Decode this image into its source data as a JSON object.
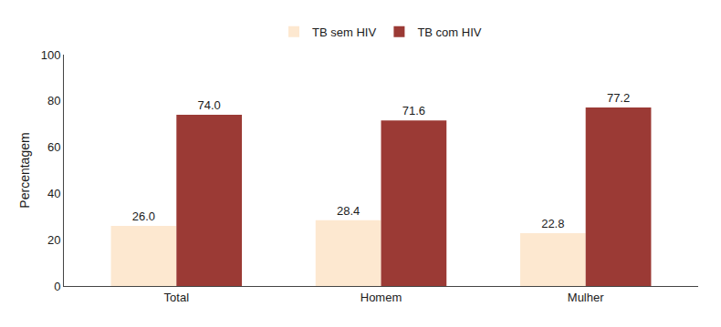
{
  "chart_data": {
    "type": "bar",
    "categories": [
      "Total",
      "Homem",
      "Mulher"
    ],
    "series": [
      {
        "name": "TB sem HIV",
        "color": "#fde8d0",
        "values": [
          26.0,
          28.4,
          22.8
        ],
        "value_labels": [
          "26.0",
          "28.4",
          "22.8"
        ]
      },
      {
        "name": "TB com HIV",
        "color": "#9b3a35",
        "values": [
          74.0,
          71.6,
          77.2
        ],
        "value_labels": [
          "74.0",
          "71.6",
          "77.2"
        ]
      }
    ],
    "ylabel": "Percentagem",
    "ylim": [
      0,
      100
    ],
    "yticks": [
      0,
      20,
      40,
      60,
      80,
      100
    ],
    "grid": false,
    "legend": "top",
    "data_labels": true
  }
}
